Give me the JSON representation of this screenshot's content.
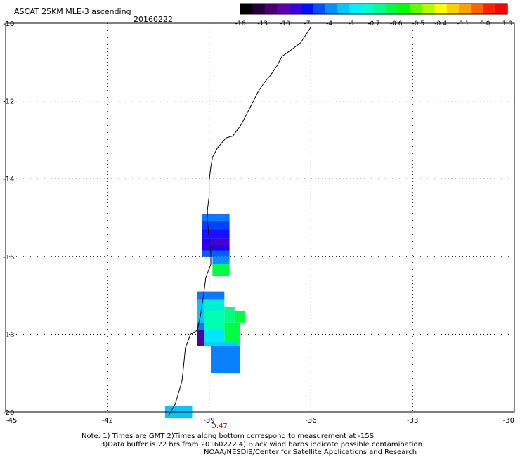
{
  "title": "ASCAT 25KM MLE-3 ascending",
  "date": "20160222",
  "colorbar": {
    "tick_labels": [
      "-16",
      "-13",
      "-10",
      "-7",
      "-4",
      "-1",
      "-0.7",
      "-0.6",
      "-0.5",
      "-0.4",
      "-0.1",
      "0.0",
      "1.0"
    ],
    "colors": [
      "#000000",
      "#24003a",
      "#4a0070",
      "#5a00b0",
      "#3a00e0",
      "#0010ff",
      "#0050ff",
      "#0090ff",
      "#00c8ff",
      "#00f0ff",
      "#00ffd0",
      "#00ff90",
      "#00ff40",
      "#00ff00",
      "#60ff00",
      "#b0ff00",
      "#ffff00",
      "#ffd000",
      "#ffa000",
      "#ff6000",
      "#ff2000",
      "#ff0000"
    ]
  },
  "axes": {
    "lon_ticks": [
      "-45",
      "-42",
      "-39",
      "-36",
      "-33",
      "-30"
    ],
    "lat_ticks": [
      "-10",
      "-12",
      "-14",
      "-16",
      "-18",
      "-20"
    ]
  },
  "time_label": "D:47",
  "notes": {
    "line1": "Note: 1) Times are GMT 2)Times along bottom correspond to measurement at -15S",
    "line2": "3)Data buffer is 22 hrs from 20160222 4) Black wind barbs indicate possible contamination",
    "line3": "NOAA/NESDIS/Center for Satellite Applications and Research"
  },
  "map_data": {
    "lon_range": [
      -45,
      -30
    ],
    "lat_range": [
      -20,
      -10
    ],
    "cells": [
      {
        "lon": -39.2,
        "lat": -14.9,
        "w": 0.8,
        "h": 0.2,
        "color": "#0a78ff"
      },
      {
        "lon": -39.2,
        "lat": -15.1,
        "w": 0.8,
        "h": 0.2,
        "color": "#0040ff"
      },
      {
        "lon": -39.2,
        "lat": -15.3,
        "w": 0.8,
        "h": 0.25,
        "color": "#1a10ff"
      },
      {
        "lon": -39.2,
        "lat": -15.55,
        "w": 0.25,
        "h": 0.3,
        "color": "#2a00e8"
      },
      {
        "lon": -38.95,
        "lat": -15.55,
        "w": 0.55,
        "h": 0.15,
        "color": "#4a00c8"
      },
      {
        "lon": -38.95,
        "lat": -15.7,
        "w": 0.55,
        "h": 0.15,
        "color": "#1a00ff"
      },
      {
        "lon": -39.2,
        "lat": -15.85,
        "w": 0.8,
        "h": 0.15,
        "color": "#0060ff"
      },
      {
        "lon": -38.9,
        "lat": -16.0,
        "w": 0.5,
        "h": 0.2,
        "color": "#0090ff"
      },
      {
        "lon": -38.9,
        "lat": -16.2,
        "w": 0.5,
        "h": 0.3,
        "color": "#00ff40"
      },
      {
        "lon": -39.35,
        "lat": -16.9,
        "w": 0.8,
        "h": 0.2,
        "color": "#0a78ff"
      },
      {
        "lon": -39.35,
        "lat": -17.1,
        "w": 0.2,
        "h": 0.6,
        "color": "#00c8ff"
      },
      {
        "lon": -39.15,
        "lat": -17.1,
        "w": 0.6,
        "h": 0.3,
        "color": "#00f0d0"
      },
      {
        "lon": -38.55,
        "lat": -17.3,
        "w": 0.3,
        "h": 0.4,
        "color": "#00ff80"
      },
      {
        "lon": -39.15,
        "lat": -17.4,
        "w": 0.6,
        "h": 0.5,
        "color": "#00ffb0"
      },
      {
        "lon": -38.55,
        "lat": -17.7,
        "w": 0.45,
        "h": 0.6,
        "color": "#00ff40"
      },
      {
        "lon": -38.25,
        "lat": -17.4,
        "w": 0.3,
        "h": 0.3,
        "color": "#00ff40"
      },
      {
        "lon": -39.35,
        "lat": -17.7,
        "w": 0.2,
        "h": 0.2,
        "color": "#0a78ff"
      },
      {
        "lon": -39.35,
        "lat": -17.9,
        "w": 0.2,
        "h": 0.4,
        "color": "#5000a0"
      },
      {
        "lon": -39.15,
        "lat": -17.9,
        "w": 0.6,
        "h": 0.3,
        "color": "#00e8ff"
      },
      {
        "lon": -39.15,
        "lat": -18.2,
        "w": 1.0,
        "h": 0.1,
        "color": "#00d0ff"
      },
      {
        "lon": -38.95,
        "lat": -18.3,
        "w": 0.85,
        "h": 0.7,
        "color": "#0a80ff"
      },
      {
        "lon": -40.3,
        "lat": -19.85,
        "w": 0.8,
        "h": 0.3,
        "color": "#00c8ff"
      }
    ],
    "coastline": [
      [
        -36.0,
        -10.1
      ],
      [
        -36.15,
        -10.3
      ],
      [
        -36.3,
        -10.5
      ],
      [
        -36.6,
        -10.7
      ],
      [
        -36.85,
        -10.85
      ],
      [
        -37.0,
        -11.1
      ],
      [
        -37.2,
        -11.35
      ],
      [
        -37.35,
        -11.5
      ],
      [
        -37.55,
        -11.75
      ],
      [
        -37.75,
        -12.1
      ],
      [
        -37.9,
        -12.35
      ],
      [
        -38.05,
        -12.6
      ],
      [
        -38.3,
        -12.9
      ],
      [
        -38.5,
        -12.95
      ],
      [
        -38.75,
        -13.2
      ],
      [
        -38.9,
        -13.45
      ],
      [
        -38.95,
        -13.7
      ],
      [
        -39.0,
        -14.05
      ],
      [
        -39.0,
        -14.45
      ],
      [
        -39.05,
        -14.8
      ],
      [
        -39.05,
        -15.1
      ],
      [
        -39.0,
        -15.5
      ],
      [
        -38.95,
        -15.9
      ],
      [
        -38.95,
        -16.2
      ],
      [
        -39.1,
        -16.55
      ],
      [
        -39.15,
        -16.9
      ],
      [
        -39.2,
        -17.2
      ],
      [
        -39.25,
        -17.5
      ],
      [
        -39.35,
        -17.9
      ],
      [
        -39.55,
        -18.0
      ],
      [
        -39.7,
        -18.35
      ],
      [
        -39.75,
        -18.8
      ],
      [
        -39.8,
        -19.2
      ],
      [
        -39.9,
        -19.5
      ],
      [
        -40.0,
        -19.8
      ],
      [
        -40.2,
        -20.1
      ]
    ]
  }
}
